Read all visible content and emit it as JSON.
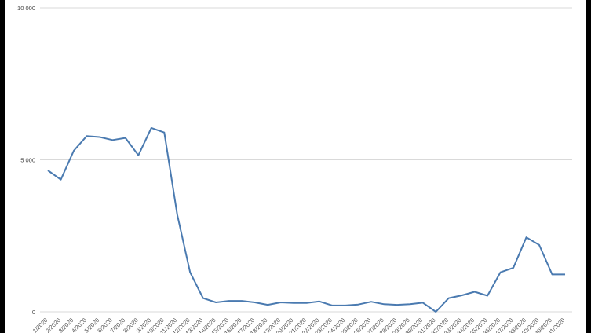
{
  "chart_data": {
    "type": "line",
    "title": "",
    "xlabel": "",
    "ylabel": "",
    "ylim": [
      0,
      10000
    ],
    "y_ticks": [
      0,
      5000,
      10000
    ],
    "y_tick_labels": [
      "0",
      "5 000",
      "10 000"
    ],
    "grid": true,
    "x_tick_labels_note_visible": "/2020",
    "x": [
      "1/2020",
      "2/2020",
      "3/2020",
      "4/2020",
      "5/2020",
      "6/2020",
      "7/2020",
      "8/2020",
      "9/2020",
      "10/2020",
      "11/2020",
      "12/2020",
      "13/2020",
      "14/2020",
      "15/2020",
      "16/2020",
      "17/2020",
      "18/2020",
      "19/2020",
      "20/2020",
      "21/2020",
      "22/2020",
      "23/2020",
      "24/2020",
      "25/2020",
      "26/2020",
      "27/2020",
      "28/2020",
      "29/2020",
      "30/2020",
      "31/2020",
      "32/2020",
      "33/2020",
      "34/2020",
      "35/2020",
      "36/2020",
      "37/2020",
      "38/2020",
      "39/2020",
      "40/2020",
      "41/2020"
    ],
    "series": [
      {
        "color": "#4a7ab0",
        "values": [
          4650,
          4350,
          5300,
          5780,
          5750,
          5650,
          5720,
          5150,
          6050,
          5900,
          3200,
          1300,
          450,
          310,
          360,
          360,
          310,
          230,
          310,
          290,
          290,
          340,
          210,
          210,
          240,
          330,
          250,
          230,
          250,
          300,
          0,
          450,
          540,
          660,
          530,
          1300,
          1450,
          2450,
          2200,
          1230,
          1230
        ]
      }
    ]
  }
}
